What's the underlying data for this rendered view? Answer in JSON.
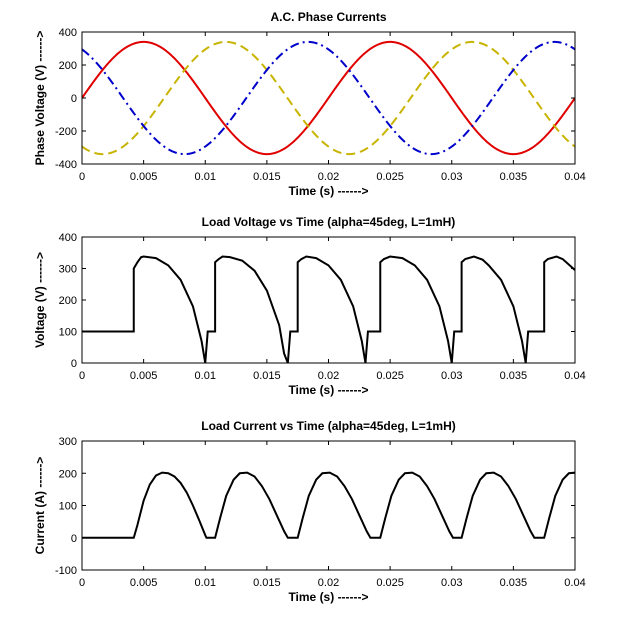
{
  "chart_data": [
    {
      "type": "line",
      "title": "A.C. Phase Currents",
      "xlabel": "Time (s)  ------>",
      "ylabel": "Phase Voltage (V)  ------>",
      "xlim": [
        0,
        0.04
      ],
      "ylim": [
        -400,
        400
      ],
      "xticks": [
        0,
        0.005,
        0.01,
        0.015,
        0.02,
        0.025,
        0.03,
        0.035,
        0.04
      ],
      "yticks": [
        -400,
        -200,
        0,
        200,
        400
      ],
      "grid": false,
      "series": [
        {
          "style": "solid",
          "color": "#e00000",
          "amplitude": 340,
          "frequency_hz": 50,
          "phase_deg": 0
        },
        {
          "style": "dashed",
          "color": "#c8b400",
          "amplitude": 340,
          "frequency_hz": 50,
          "phase_deg": -120
        },
        {
          "style": "dash-dot",
          "color": "#0000cc",
          "amplitude": 340,
          "frequency_hz": 50,
          "phase_deg": 120
        }
      ]
    },
    {
      "type": "line",
      "title": "Load Voltage vs Time (alpha=45deg, L=1mH)",
      "xlabel": "Time (s)  ------>",
      "ylabel": "Voltage (V)  ------>",
      "xlim": [
        0,
        0.04
      ],
      "ylim": [
        0,
        400
      ],
      "xticks": [
        0,
        0.005,
        0.01,
        0.015,
        0.02,
        0.025,
        0.03,
        0.035,
        0.04
      ],
      "yticks": [
        0,
        100,
        200,
        300,
        400
      ],
      "grid": false,
      "series": [
        {
          "style": "solid",
          "color": "#000000",
          "points": [
            [
              0,
              100
            ],
            [
              0.0042,
              100
            ],
            [
              0.0042,
              300
            ],
            [
              0.0045,
              320
            ],
            [
              0.0048,
              336
            ],
            [
              0.005,
              338
            ],
            [
              0.006,
              333
            ],
            [
              0.007,
              310
            ],
            [
              0.008,
              264
            ],
            [
              0.009,
              180
            ],
            [
              0.0097,
              70
            ],
            [
              0.01,
              0
            ],
            [
              0.0102,
              100
            ],
            [
              0.0108,
              100
            ],
            [
              0.0108,
              320
            ],
            [
              0.0111,
              330
            ],
            [
              0.0114,
              338
            ],
            [
              0.012,
              336
            ],
            [
              0.013,
              325
            ],
            [
              0.014,
              293
            ],
            [
              0.015,
              230
            ],
            [
              0.016,
              120
            ],
            [
              0.0164,
              30
            ],
            [
              0.0167,
              0
            ],
            [
              0.0169,
              100
            ],
            [
              0.0175,
              100
            ],
            [
              0.0175,
              320
            ],
            [
              0.0178,
              330
            ],
            [
              0.0182,
              338
            ],
            [
              0.019,
              333
            ],
            [
              0.02,
              310
            ],
            [
              0.021,
              264
            ],
            [
              0.022,
              180
            ],
            [
              0.0227,
              70
            ],
            [
              0.023,
              0
            ],
            [
              0.0232,
              100
            ],
            [
              0.0242,
              100
            ],
            [
              0.0242,
              320
            ],
            [
              0.0245,
              330
            ],
            [
              0.025,
              338
            ],
            [
              0.026,
              333
            ],
            [
              0.027,
              310
            ],
            [
              0.028,
              264
            ],
            [
              0.029,
              180
            ],
            [
              0.0297,
              70
            ],
            [
              0.03,
              0
            ],
            [
              0.0302,
              100
            ],
            [
              0.0308,
              100
            ],
            [
              0.0308,
              320
            ],
            [
              0.0311,
              330
            ],
            [
              0.0318,
              338
            ],
            [
              0.0325,
              328
            ],
            [
              0.033,
              310
            ],
            [
              0.034,
              264
            ],
            [
              0.035,
              180
            ],
            [
              0.0357,
              70
            ],
            [
              0.036,
              0
            ],
            [
              0.0362,
              100
            ],
            [
              0.0375,
              100
            ],
            [
              0.0375,
              320
            ],
            [
              0.0378,
              330
            ],
            [
              0.0385,
              338
            ],
            [
              0.039,
              330
            ],
            [
              0.04,
              295
            ]
          ]
        }
      ]
    },
    {
      "type": "line",
      "title": "Load Current vs Time (alpha=45deg, L=1mH)",
      "xlabel": "Time (s)  ------>",
      "ylabel": "Current (A)  ------>",
      "xlim": [
        0,
        0.04
      ],
      "ylim": [
        -100,
        300
      ],
      "xticks": [
        0,
        0.005,
        0.01,
        0.015,
        0.02,
        0.025,
        0.03,
        0.035,
        0.04
      ],
      "yticks": [
        -100,
        0,
        100,
        200,
        300
      ],
      "grid": false,
      "series": [
        {
          "style": "solid",
          "color": "#000000",
          "points": [
            [
              0,
              0
            ],
            [
              0.0042,
              0
            ],
            [
              0.0045,
              40
            ],
            [
              0.005,
              115
            ],
            [
              0.0055,
              165
            ],
            [
              0.006,
              193
            ],
            [
              0.0065,
              202
            ],
            [
              0.007,
              200
            ],
            [
              0.0075,
              190
            ],
            [
              0.008,
              170
            ],
            [
              0.0085,
              140
            ],
            [
              0.009,
              100
            ],
            [
              0.0095,
              55
            ],
            [
              0.01,
              8
            ],
            [
              0.0101,
              0
            ],
            [
              0.0108,
              0
            ],
            [
              0.0112,
              60
            ],
            [
              0.0117,
              130
            ],
            [
              0.0123,
              180
            ],
            [
              0.0128,
              200
            ],
            [
              0.0134,
              202
            ],
            [
              0.014,
              190
            ],
            [
              0.0146,
              160
            ],
            [
              0.0152,
              120
            ],
            [
              0.0158,
              70
            ],
            [
              0.0164,
              20
            ],
            [
              0.0167,
              0
            ],
            [
              0.0175,
              0
            ],
            [
              0.0179,
              60
            ],
            [
              0.0184,
              130
            ],
            [
              0.019,
              180
            ],
            [
              0.0195,
              200
            ],
            [
              0.0201,
              202
            ],
            [
              0.0207,
              190
            ],
            [
              0.0213,
              160
            ],
            [
              0.0219,
              120
            ],
            [
              0.0225,
              70
            ],
            [
              0.0231,
              20
            ],
            [
              0.0234,
              0
            ],
            [
              0.0242,
              0
            ],
            [
              0.0246,
              60
            ],
            [
              0.0251,
              130
            ],
            [
              0.0257,
              180
            ],
            [
              0.0262,
              200
            ],
            [
              0.0268,
              202
            ],
            [
              0.0274,
              190
            ],
            [
              0.028,
              160
            ],
            [
              0.0286,
              120
            ],
            [
              0.0292,
              70
            ],
            [
              0.0298,
              20
            ],
            [
              0.0301,
              0
            ],
            [
              0.0308,
              0
            ],
            [
              0.0312,
              60
            ],
            [
              0.0317,
              130
            ],
            [
              0.0323,
              180
            ],
            [
              0.0328,
              200
            ],
            [
              0.0334,
              202
            ],
            [
              0.034,
              190
            ],
            [
              0.0346,
              160
            ],
            [
              0.0352,
              120
            ],
            [
              0.0358,
              70
            ],
            [
              0.0364,
              20
            ],
            [
              0.0367,
              0
            ],
            [
              0.0375,
              0
            ],
            [
              0.0379,
              60
            ],
            [
              0.0384,
              130
            ],
            [
              0.039,
              180
            ],
            [
              0.0395,
              200
            ],
            [
              0.04,
              202
            ]
          ]
        }
      ]
    }
  ]
}
